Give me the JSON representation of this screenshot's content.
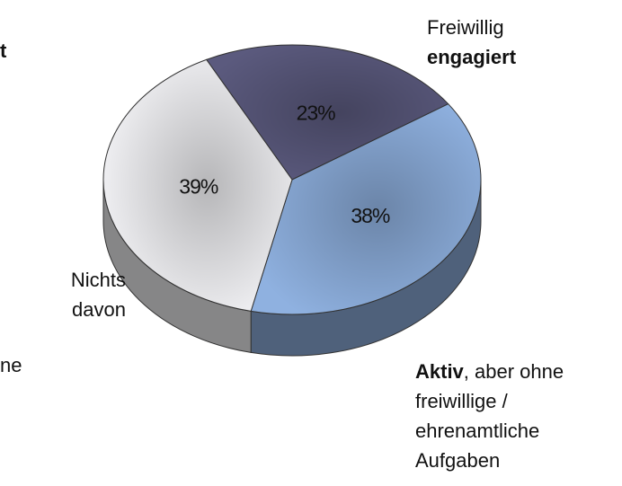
{
  "chart_data": {
    "type": "pie",
    "categories": [
      [
        [
          {
            "text": "Freiwillig"
          }
        ],
        [
          {
            "text": "engagiert",
            "bold": true
          }
        ]
      ],
      [
        [
          {
            "text": "Aktiv",
            "bold": true
          },
          {
            "text": ", aber ohne"
          }
        ],
        [
          {
            "text": "freiwillige /"
          }
        ],
        [
          {
            "text": "ehrenamtliche"
          }
        ],
        [
          {
            "text": "Aufgaben"
          }
        ]
      ],
      [
        [
          {
            "text": "Nichts"
          }
        ],
        [
          {
            "text": "davon"
          }
        ]
      ]
    ],
    "values": [
      23,
      38,
      39
    ],
    "value_labels": [
      "23%",
      "38%",
      "39%"
    ],
    "colors": [
      "#5b5a7e",
      "#8fb1e0",
      "#f3f3f6"
    ],
    "annotations": [
      {
        "text": "t",
        "bold": true
      },
      {
        "text": "ne"
      }
    ]
  }
}
